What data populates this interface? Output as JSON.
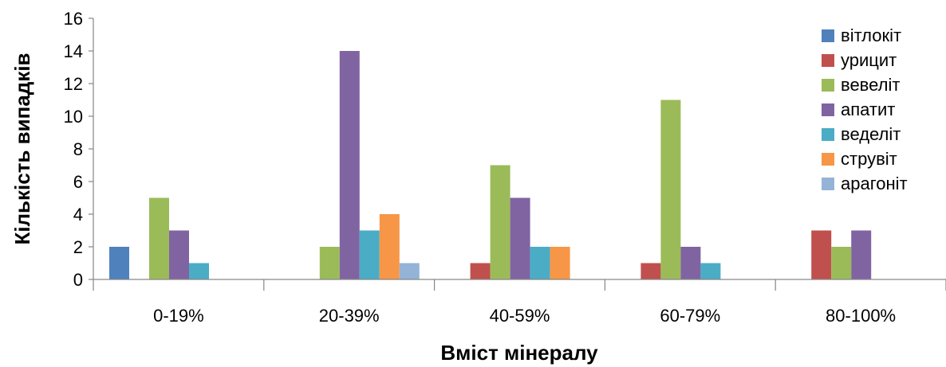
{
  "chart_data": {
    "type": "bar",
    "title": "",
    "xlabel": "Вміст мінералу",
    "ylabel": "Кількість випадків",
    "ylim": [
      0,
      16
    ],
    "yticks": [
      0,
      2,
      4,
      6,
      8,
      10,
      12,
      14,
      16
    ],
    "grid": false,
    "legend_position": "top-right",
    "categories": [
      "0-19%",
      "20-39%",
      "40-59%",
      "60-79%",
      "80-100%"
    ],
    "series": [
      {
        "name": "вітлокіт",
        "color": "#4F81BD",
        "values": [
          2,
          0,
          0,
          0,
          0
        ]
      },
      {
        "name": "урицит",
        "color": "#C0504D",
        "values": [
          0,
          0,
          1,
          1,
          3
        ]
      },
      {
        "name": "вевеліт",
        "color": "#9BBB59",
        "values": [
          5,
          2,
          7,
          11,
          2
        ]
      },
      {
        "name": "апатит",
        "color": "#8064A2",
        "values": [
          3,
          14,
          5,
          2,
          3
        ]
      },
      {
        "name": "веделіт",
        "color": "#4BACC6",
        "values": [
          1,
          3,
          2,
          1,
          0
        ]
      },
      {
        "name": "струвіт",
        "color": "#F79646",
        "values": [
          0,
          4,
          2,
          0,
          0
        ]
      },
      {
        "name": "арагоніт",
        "color": "#95B3D7",
        "values": [
          0,
          1,
          0,
          0,
          0
        ]
      }
    ]
  }
}
